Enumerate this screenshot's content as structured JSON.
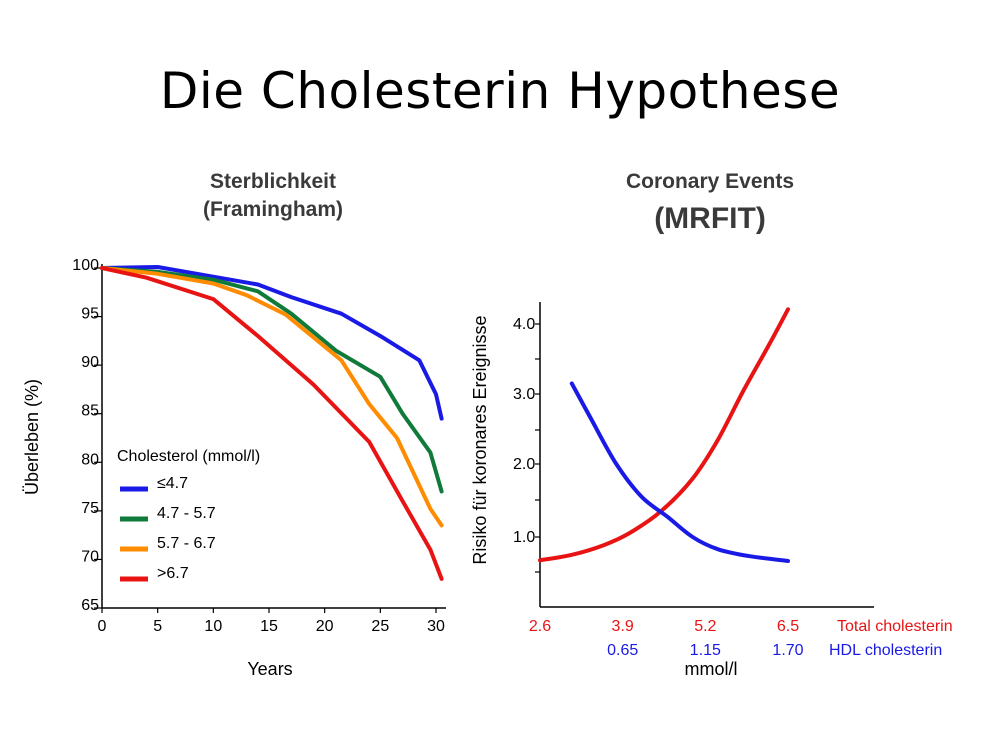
{
  "slide": {
    "title": "Die Cholesterin Hypothese"
  },
  "chart_data": [
    {
      "type": "line",
      "title": "Sterblichkeit",
      "subtitle": "(Framingham)",
      "xlabel": "Years",
      "ylabel": "Überleben (%)",
      "xlim": [
        0,
        30
      ],
      "ylim": [
        65,
        100
      ],
      "xticks": [
        0,
        5,
        10,
        15,
        20,
        25,
        30
      ],
      "yticks": [
        65,
        70,
        75,
        80,
        85,
        90,
        95,
        100
      ],
      "grid": false,
      "legend": {
        "title": "Cholesterol (mmol/l)",
        "placement": "bottom-left"
      },
      "series": [
        {
          "name": "≤4.7",
          "color": "#1a1ae6",
          "points": [
            [
              0,
              100
            ],
            [
              5,
              100.1
            ],
            [
              10,
              99.1
            ],
            [
              14,
              98.3
            ],
            [
              17,
              97
            ],
            [
              21.5,
              95.3
            ],
            [
              25,
              93
            ],
            [
              28.5,
              90.5
            ],
            [
              30,
              87
            ],
            [
              30.5,
              84.5
            ]
          ]
        },
        {
          "name": "4.7 - 5.7",
          "color": "#0f7a3a",
          "points": [
            [
              0,
              100
            ],
            [
              5,
              99.6
            ],
            [
              10,
              98.8
            ],
            [
              14,
              97.6
            ],
            [
              17,
              95.3
            ],
            [
              21,
              91.5
            ],
            [
              25,
              88.8
            ],
            [
              27,
              85
            ],
            [
              29.5,
              81
            ],
            [
              30.5,
              77
            ]
          ]
        },
        {
          "name": "5.7 - 6.7",
          "color": "#ff8c00",
          "points": [
            [
              0,
              100
            ],
            [
              5,
              99.4
            ],
            [
              10,
              98.4
            ],
            [
              13,
              97.2
            ],
            [
              16.5,
              95.2
            ],
            [
              21.5,
              90.5
            ],
            [
              24,
              86
            ],
            [
              26.5,
              82.5
            ],
            [
              29.5,
              75.2
            ],
            [
              30.5,
              73.5
            ]
          ]
        },
        {
          "name": ">6.7",
          "color": "#e81414",
          "points": [
            [
              0,
              100
            ],
            [
              4,
              99
            ],
            [
              10,
              96.8
            ],
            [
              14,
              93
            ],
            [
              19,
              88
            ],
            [
              24,
              82.1
            ],
            [
              27,
              76
            ],
            [
              29.5,
              71
            ],
            [
              30.5,
              68
            ]
          ]
        }
      ]
    },
    {
      "type": "line",
      "title": "Coronary Events",
      "subtitle": "(MRFIT)",
      "xlabel": "mmol/l",
      "ylabel": "Risiko für koronares Ereignisse",
      "xlim": [
        2.6,
        7.8
      ],
      "ylim": [
        0,
        4.3
      ],
      "yticks": [
        "1.0",
        "2.0",
        "3.0",
        "4.0"
      ],
      "xticks_total": [
        "2.6",
        "3.9",
        "5.2",
        "6.5"
      ],
      "xticks_total_values": [
        2.6,
        3.9,
        5.2,
        6.5
      ],
      "xticks_total_label": "Total cholesterin",
      "xticks_hdl": [
        "0.65",
        "1.15",
        "1.70"
      ],
      "xticks_hdl_positions": [
        3.9,
        5.2,
        6.5
      ],
      "xticks_hdl_label": "HDL cholesterin",
      "grid": false,
      "series": [
        {
          "name": "Total cholesterin",
          "color": "#e81414",
          "points": [
            [
              2.6,
              0.66
            ],
            [
              3.1,
              0.74
            ],
            [
              3.6,
              0.88
            ],
            [
              4.0,
              1.05
            ],
            [
              4.5,
              1.35
            ],
            [
              5.0,
              1.8
            ],
            [
              5.4,
              2.35
            ],
            [
              5.8,
              3.05
            ],
            [
              6.2,
              3.7
            ],
            [
              6.5,
              4.2
            ]
          ]
        },
        {
          "name": "HDL cholesterin",
          "color": "#1a1ae6",
          "points": [
            [
              3.1,
              3.15
            ],
            [
              3.4,
              2.65
            ],
            [
              3.8,
              2.0
            ],
            [
              4.2,
              1.55
            ],
            [
              4.6,
              1.28
            ],
            [
              5.0,
              1.0
            ],
            [
              5.4,
              0.82
            ],
            [
              5.9,
              0.72
            ],
            [
              6.5,
              0.65
            ]
          ]
        }
      ]
    }
  ]
}
